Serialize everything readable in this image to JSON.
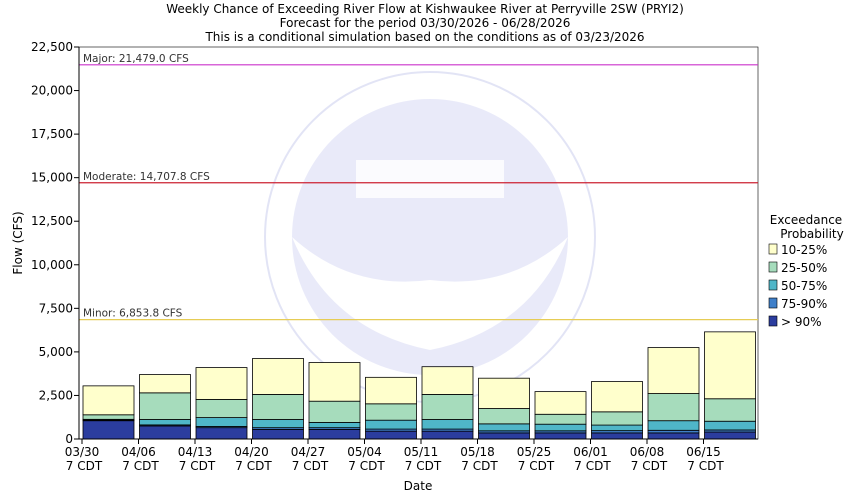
{
  "chart_data": {
    "type": "bar",
    "stacked": true,
    "title_lines": [
      "Weekly Chance of Exceeding River Flow at Kishwaukee River at Perryville 2SW (PRYI2)",
      "Forecast for the period 03/30/2026 - 06/28/2026",
      "This is a conditional simulation based on the conditions as of 03/23/2026"
    ],
    "xlabel": "Date",
    "ylabel": "Flow (CFS)",
    "ylim": [
      0,
      22500
    ],
    "y_ticks": [
      "0",
      "2,500",
      "5,000",
      "7,500",
      "10,000",
      "12,500",
      "15,000",
      "17,500",
      "20,000",
      "22,500"
    ],
    "x_ticks": [
      {
        "date": "03/30",
        "tz": "7 CDT"
      },
      {
        "date": "04/06",
        "tz": "7 CDT"
      },
      {
        "date": "04/13",
        "tz": "7 CDT"
      },
      {
        "date": "04/20",
        "tz": "7 CDT"
      },
      {
        "date": "04/27",
        "tz": "7 CDT"
      },
      {
        "date": "05/04",
        "tz": "7 CDT"
      },
      {
        "date": "05/11",
        "tz": "7 CDT"
      },
      {
        "date": "05/18",
        "tz": "7 CDT"
      },
      {
        "date": "05/25",
        "tz": "7 CDT"
      },
      {
        "date": "06/01",
        "tz": "7 CDT"
      },
      {
        "date": "06/08",
        "tz": "7 CDT"
      },
      {
        "date": "06/15",
        "tz": "7 CDT"
      }
    ],
    "grid": false,
    "thresholds": [
      {
        "label": "Major: 21,479.0 CFS",
        "value": 21479.0,
        "color": "#cc33cc"
      },
      {
        "label": "Moderate: 14,707.8 CFS",
        "value": 14707.8,
        "color": "#cc2233"
      },
      {
        "label": "Minor: 6,853.8 CFS",
        "value": 6853.8,
        "color": "#e6cc55"
      }
    ],
    "legend": {
      "title_lines": [
        "Exceedance",
        "Probability"
      ],
      "placement": "right",
      "entries": [
        "10-25%",
        "25-50%",
        "50-75%",
        "75-90%",
        "> 90%"
      ]
    },
    "series": [
      {
        "name": "> 90%",
        "color": "#2b3d9e",
        "values": [
          1050,
          750,
          650,
          550,
          550,
          450,
          450,
          350,
          350,
          350,
          350,
          400
        ]
      },
      {
        "name": "75-90%",
        "color": "#3f7fc9",
        "values": [
          1080,
          810,
          720,
          650,
          650,
          570,
          570,
          470,
          470,
          480,
          500,
          520
        ]
      },
      {
        "name": "50-75%",
        "color": "#4fb6c8",
        "values": [
          1130,
          1120,
          1230,
          1120,
          950,
          1080,
          1120,
          870,
          850,
          800,
          1050,
          1020
        ]
      },
      {
        "name": "25-50%",
        "color": "#a6dcbc",
        "values": [
          1390,
          2650,
          2270,
          2560,
          2170,
          2020,
          2560,
          1750,
          1420,
          1560,
          2610,
          2310
        ]
      },
      {
        "name": "10-25%",
        "color": "#ffffcc",
        "values": [
          3050,
          3700,
          4100,
          4620,
          4390,
          3540,
          4150,
          3490,
          2720,
          3300,
          5250,
          6150
        ]
      }
    ]
  }
}
